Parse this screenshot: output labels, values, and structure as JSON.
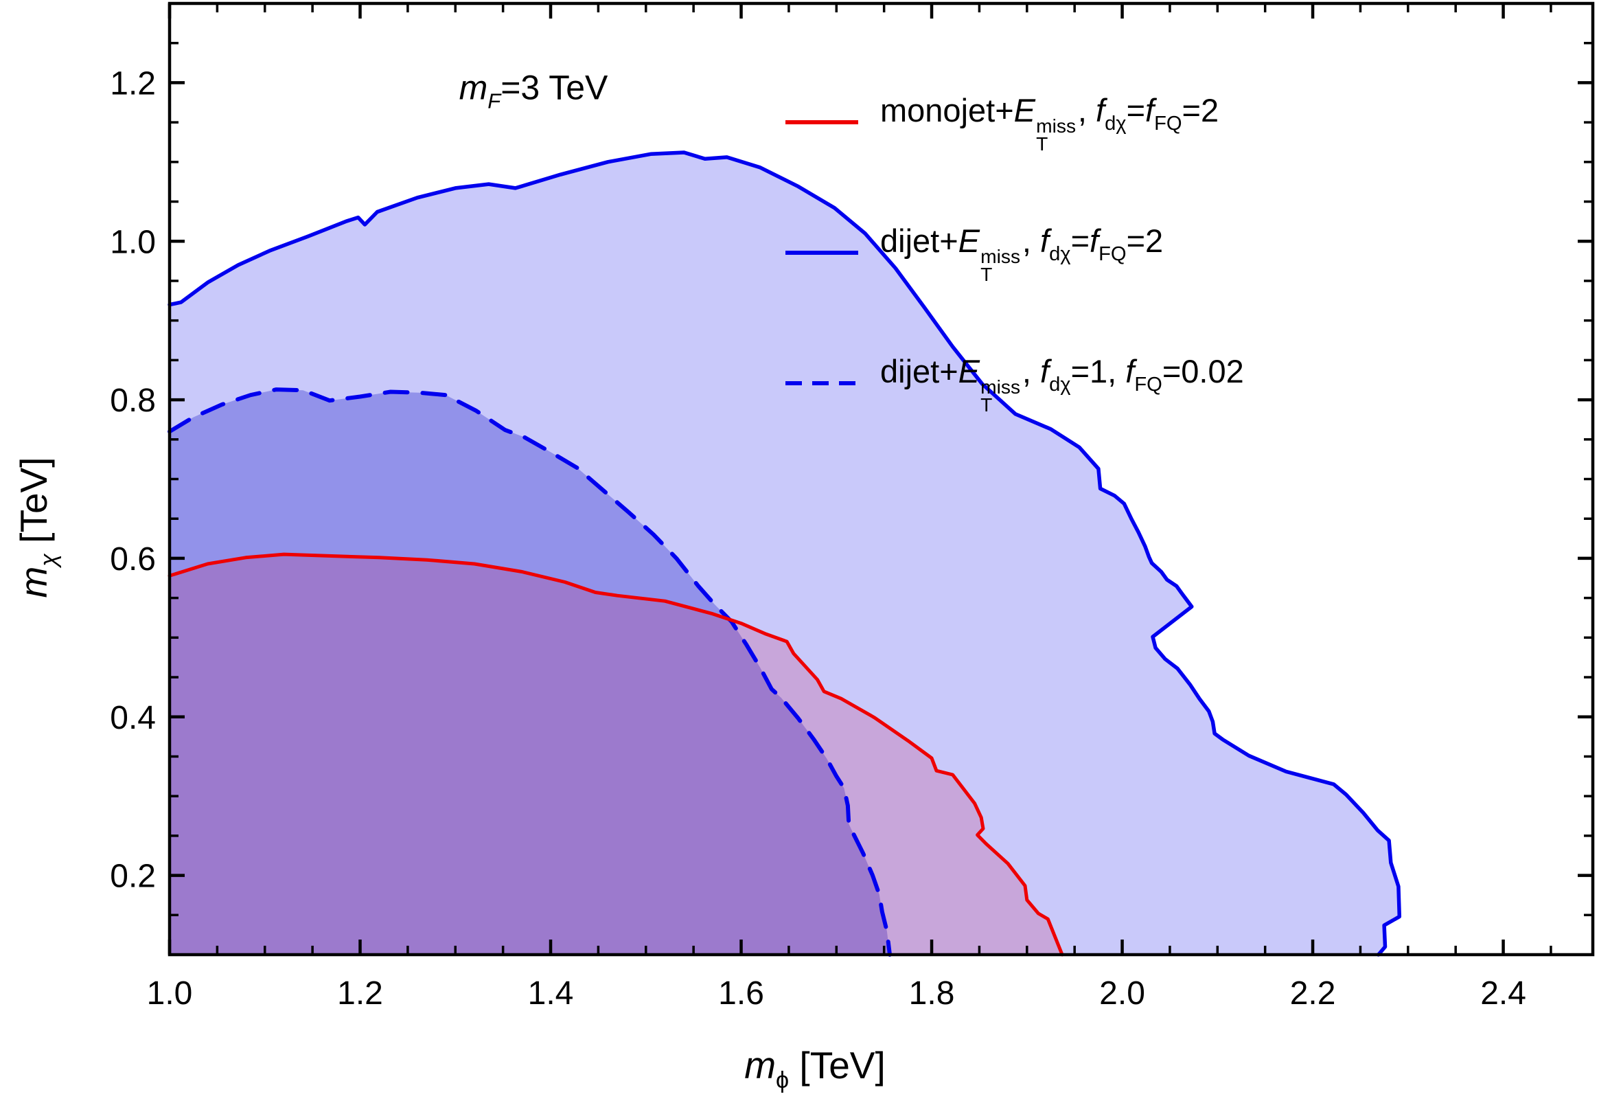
{
  "title": {
    "plain": "mF=3 TeV",
    "segments": [
      {
        "t": "m",
        "i": 1
      },
      {
        "t": "F",
        "i": 1,
        "pos": "sub"
      },
      {
        "t": "=3 TeV"
      }
    ]
  },
  "axes": {
    "x": {
      "label_plain": "mϕ [TeV]",
      "label_segments": [
        {
          "t": "m",
          "i": 1
        },
        {
          "t": "ϕ",
          "pos": "sub"
        },
        {
          "t": " [TeV]"
        }
      ],
      "major_ticks": [
        1.0,
        1.2,
        1.4,
        1.6,
        1.8,
        2.0,
        2.2,
        2.4
      ],
      "tick_labels": [
        "1.0",
        "1.2",
        "1.4",
        "1.6",
        "1.8",
        "2.0",
        "2.2",
        "2.4"
      ],
      "minor_step": 0.05
    },
    "y": {
      "label_plain": "mχ [TeV]",
      "label_segments": [
        {
          "t": "m",
          "i": 1
        },
        {
          "t": "χ",
          "i": 1,
          "pos": "sub"
        },
        {
          "t": " [TeV]"
        }
      ],
      "major_ticks": [
        0.2,
        0.4,
        0.6,
        0.8,
        1.0,
        1.2
      ],
      "tick_labels": [
        "0.2",
        "0.4",
        "0.6",
        "0.8",
        "1.0",
        "1.2"
      ],
      "minor_step": 0.05
    }
  },
  "legend": {
    "items": [
      {
        "name": "monojet+ETmiss, fdχ=fFQ=2",
        "line_style": "solid",
        "color": "#ee0000",
        "segments": [
          {
            "t": "monojet+"
          },
          {
            "t": "E",
            "i": 1
          },
          {
            "stack": {
              "sup": "miss",
              "sub": "T"
            }
          },
          {
            "t": ", "
          },
          {
            "t": "f",
            "i": 1
          },
          {
            "t": "dχ",
            "pos": "sub"
          },
          {
            "t": "="
          },
          {
            "t": "f",
            "i": 1
          },
          {
            "t": "FQ",
            "pos": "sub"
          },
          {
            "t": "=2"
          }
        ]
      },
      {
        "name": "dijet+ETmiss, fdχ=fFQ=2",
        "line_style": "solid",
        "color": "#0000ee",
        "segments": [
          {
            "t": "dijet+"
          },
          {
            "t": "E",
            "i": 1
          },
          {
            "stack": {
              "sup": "miss",
              "sub": "T"
            }
          },
          {
            "t": ", "
          },
          {
            "t": "f",
            "i": 1
          },
          {
            "t": "dχ",
            "pos": "sub"
          },
          {
            "t": "="
          },
          {
            "t": "f",
            "i": 1
          },
          {
            "t": "FQ",
            "pos": "sub"
          },
          {
            "t": "=2"
          }
        ]
      },
      {
        "name": "dijet+ETmiss, fdχ=1, fFQ=0.02",
        "line_style": "dashed",
        "color": "#0000ee",
        "segments": [
          {
            "t": "dijet+"
          },
          {
            "t": "E",
            "i": 1
          },
          {
            "stack": {
              "sup": "miss",
              "sub": "T"
            }
          },
          {
            "t": ", "
          },
          {
            "t": "f",
            "i": 1
          },
          {
            "t": "dχ",
            "pos": "sub"
          },
          {
            "t": "=1, "
          },
          {
            "t": "f",
            "i": 1
          },
          {
            "t": "FQ",
            "pos": "sub"
          },
          {
            "t": "=0.02"
          }
        ]
      }
    ]
  },
  "chart_data": {
    "type": "area",
    "title": "mF=3 TeV",
    "xlabel": "mϕ [TeV]",
    "ylabel": "mχ [TeV]",
    "xlim": [
      1.0,
      2.494
    ],
    "ylim": [
      0.1,
      1.3
    ],
    "grid": false,
    "legend_position": "upper right, inside frame",
    "series": [
      {
        "name": "monojet+ETmiss, fdχ=fFQ=2",
        "style": "solid",
        "color": "#ee0000",
        "stroke_width": 5,
        "fill": "#c81e5a",
        "fill_opacity": 0.2,
        "region": "excluded region below curve, closed to bottom-left corner",
        "points": [
          [
            1.0,
            0.578
          ],
          [
            1.04,
            0.593
          ],
          [
            1.08,
            0.601
          ],
          [
            1.12,
            0.605
          ],
          [
            1.17,
            0.603
          ],
          [
            1.22,
            0.601
          ],
          [
            1.27,
            0.598
          ],
          [
            1.32,
            0.593
          ],
          [
            1.37,
            0.583
          ],
          [
            1.415,
            0.57
          ],
          [
            1.447,
            0.557
          ],
          [
            1.47,
            0.553
          ],
          [
            1.52,
            0.546
          ],
          [
            1.57,
            0.53
          ],
          [
            1.6,
            0.518
          ],
          [
            1.625,
            0.505
          ],
          [
            1.648,
            0.495
          ],
          [
            1.655,
            0.48
          ],
          [
            1.68,
            0.447
          ],
          [
            1.687,
            0.432
          ],
          [
            1.705,
            0.423
          ],
          [
            1.74,
            0.399
          ],
          [
            1.775,
            0.37
          ],
          [
            1.8,
            0.348
          ],
          [
            1.805,
            0.332
          ],
          [
            1.822,
            0.327
          ],
          [
            1.845,
            0.291
          ],
          [
            1.852,
            0.273
          ],
          [
            1.854,
            0.259
          ],
          [
            1.848,
            0.251
          ],
          [
            1.857,
            0.24
          ],
          [
            1.88,
            0.215
          ],
          [
            1.898,
            0.187
          ],
          [
            1.9,
            0.169
          ],
          [
            1.912,
            0.152
          ],
          [
            1.922,
            0.145
          ],
          [
            1.937,
            0.1
          ]
        ]
      },
      {
        "name": "dijet+ETmiss, fdχ=fFQ=2",
        "style": "solid",
        "color": "#0000ee",
        "stroke_width": 5.5,
        "fill": "#0000e8",
        "fill_opacity": 0.21,
        "region": "excluded region below curve, closed to bottom-left corner",
        "points": [
          [
            1.0,
            0.92
          ],
          [
            1.012,
            0.923
          ],
          [
            1.04,
            0.948
          ],
          [
            1.072,
            0.97
          ],
          [
            1.105,
            0.988
          ],
          [
            1.145,
            1.006
          ],
          [
            1.185,
            1.025
          ],
          [
            1.198,
            1.03
          ],
          [
            1.205,
            1.021
          ],
          [
            1.218,
            1.037
          ],
          [
            1.26,
            1.055
          ],
          [
            1.3,
            1.067
          ],
          [
            1.335,
            1.072
          ],
          [
            1.363,
            1.067
          ],
          [
            1.41,
            1.084
          ],
          [
            1.46,
            1.1
          ],
          [
            1.505,
            1.11
          ],
          [
            1.54,
            1.112
          ],
          [
            1.562,
            1.104
          ],
          [
            1.585,
            1.106
          ],
          [
            1.62,
            1.093
          ],
          [
            1.66,
            1.069
          ],
          [
            1.698,
            1.042
          ],
          [
            1.73,
            1.01
          ],
          [
            1.762,
            0.966
          ],
          [
            1.792,
            0.917
          ],
          [
            1.822,
            0.867
          ],
          [
            1.853,
            0.82
          ],
          [
            1.888,
            0.782
          ],
          [
            1.925,
            0.763
          ],
          [
            1.955,
            0.74
          ],
          [
            1.975,
            0.713
          ],
          [
            1.977,
            0.688
          ],
          [
            1.992,
            0.679
          ],
          [
            2.002,
            0.669
          ],
          [
            2.01,
            0.649
          ],
          [
            2.017,
            0.633
          ],
          [
            2.024,
            0.615
          ],
          [
            2.028,
            0.602
          ],
          [
            2.031,
            0.594
          ],
          [
            2.041,
            0.583
          ],
          [
            2.047,
            0.573
          ],
          [
            2.057,
            0.565
          ],
          [
            2.063,
            0.555
          ],
          [
            2.073,
            0.539
          ],
          [
            2.032,
            0.501
          ],
          [
            2.035,
            0.487
          ],
          [
            2.045,
            0.473
          ],
          [
            2.058,
            0.461
          ],
          [
            2.071,
            0.441
          ],
          [
            2.081,
            0.423
          ],
          [
            2.091,
            0.407
          ],
          [
            2.095,
            0.394
          ],
          [
            2.097,
            0.379
          ],
          [
            2.106,
            0.371
          ],
          [
            2.133,
            0.351
          ],
          [
            2.172,
            0.331
          ],
          [
            2.222,
            0.315
          ],
          [
            2.235,
            0.302
          ],
          [
            2.253,
            0.279
          ],
          [
            2.268,
            0.257
          ],
          [
            2.28,
            0.244
          ],
          [
            2.282,
            0.216
          ],
          [
            2.29,
            0.186
          ],
          [
            2.291,
            0.148
          ],
          [
            2.275,
            0.137
          ],
          [
            2.276,
            0.11
          ],
          [
            2.269,
            0.1
          ]
        ]
      },
      {
        "name": "dijet+ETmiss, fdχ=1, fFQ=0.02",
        "style": "dashed",
        "color": "#0000ee",
        "stroke_width": 6,
        "dash": "33 22",
        "fill": "#1414c8",
        "fill_opacity": 0.3,
        "region": "excluded region below curve, closed to bottom-left corner",
        "points": [
          [
            1.0,
            0.76
          ],
          [
            1.025,
            0.778
          ],
          [
            1.055,
            0.794
          ],
          [
            1.085,
            0.806
          ],
          [
            1.112,
            0.813
          ],
          [
            1.14,
            0.812
          ],
          [
            1.168,
            0.799
          ],
          [
            1.2,
            0.804
          ],
          [
            1.232,
            0.81
          ],
          [
            1.262,
            0.809
          ],
          [
            1.29,
            0.806
          ],
          [
            1.322,
            0.786
          ],
          [
            1.352,
            0.762
          ],
          [
            1.372,
            0.753
          ],
          [
            1.4,
            0.734
          ],
          [
            1.428,
            0.714
          ],
          [
            1.455,
            0.686
          ],
          [
            1.482,
            0.658
          ],
          [
            1.508,
            0.63
          ],
          [
            1.532,
            0.6
          ],
          [
            1.555,
            0.565
          ],
          [
            1.572,
            0.542
          ],
          [
            1.59,
            0.52
          ],
          [
            1.605,
            0.492
          ],
          [
            1.62,
            0.462
          ],
          [
            1.632,
            0.435
          ],
          [
            1.642,
            0.424
          ],
          [
            1.66,
            0.398
          ],
          [
            1.676,
            0.372
          ],
          [
            1.69,
            0.347
          ],
          [
            1.7,
            0.325
          ],
          [
            1.708,
            0.31
          ],
          [
            1.712,
            0.288
          ],
          [
            1.713,
            0.265
          ],
          [
            1.718,
            0.252
          ],
          [
            1.728,
            0.228
          ],
          [
            1.738,
            0.2
          ],
          [
            1.745,
            0.176
          ],
          [
            1.748,
            0.154
          ],
          [
            1.753,
            0.13
          ],
          [
            1.756,
            0.1
          ]
        ]
      }
    ]
  }
}
